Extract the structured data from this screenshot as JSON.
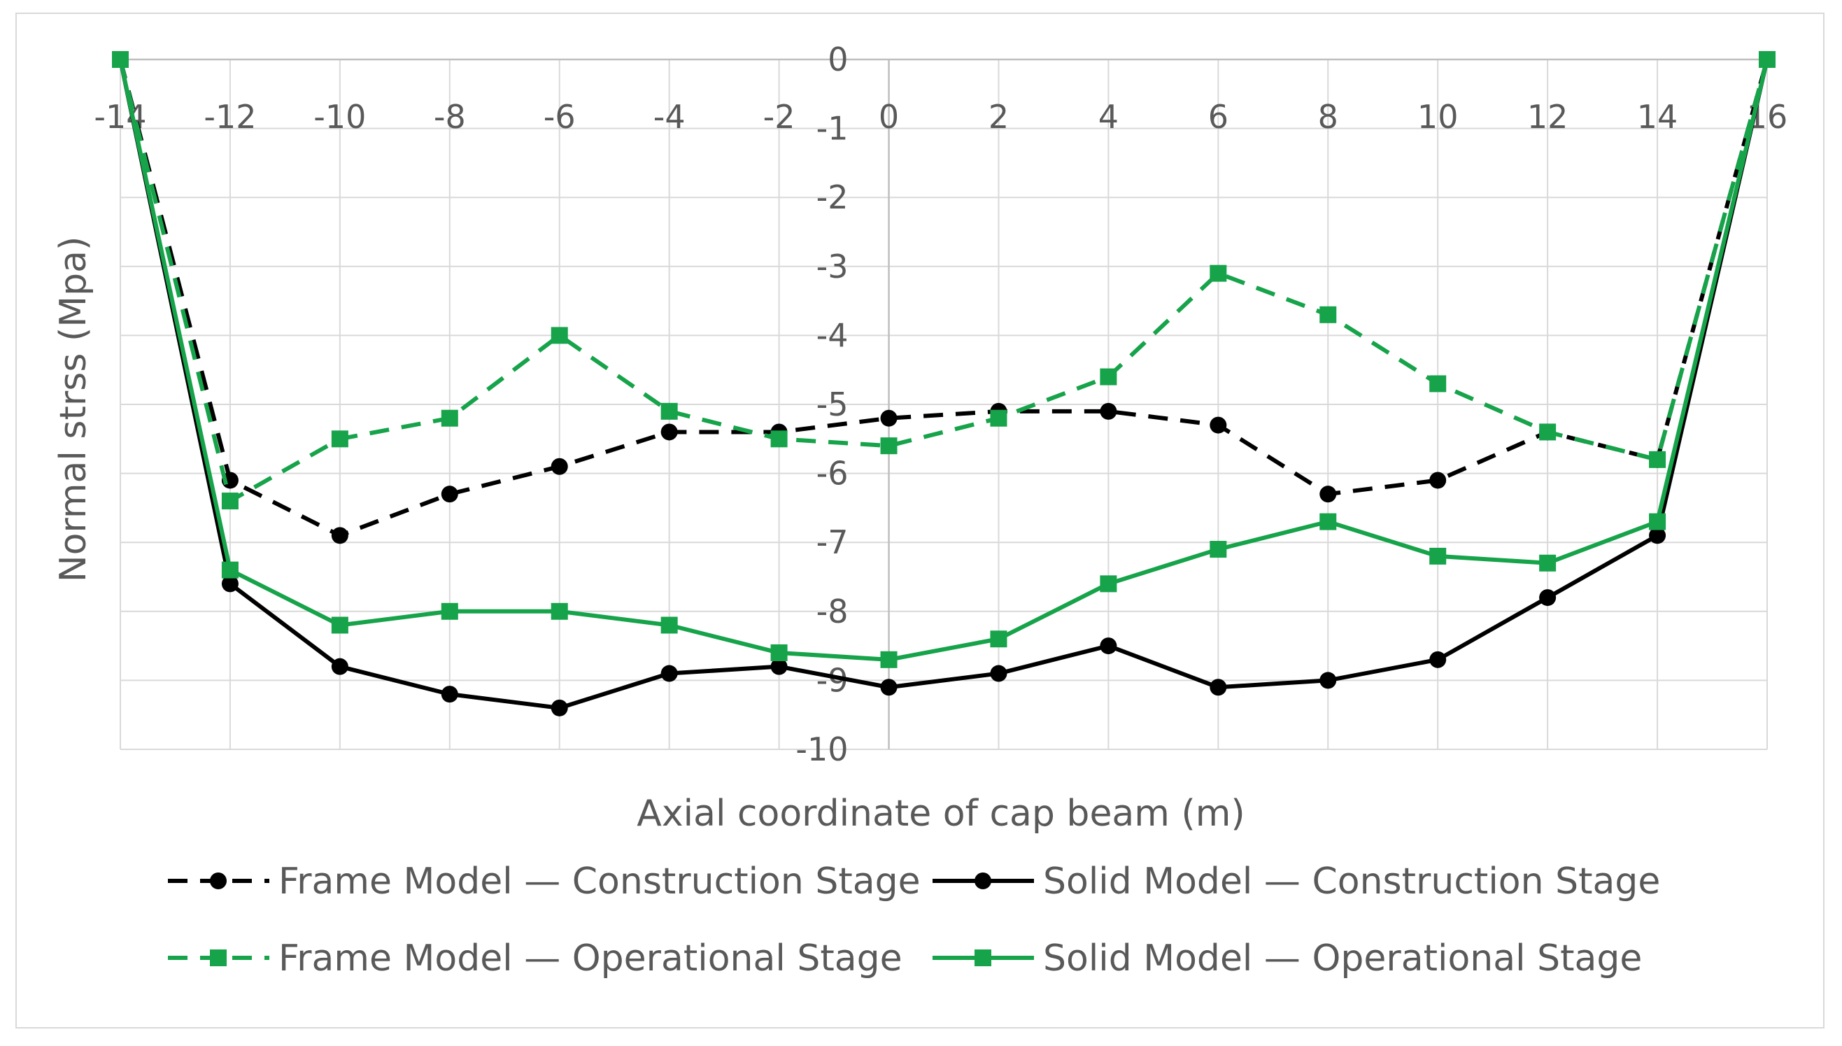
{
  "chart_data": {
    "type": "line",
    "title": "",
    "xlabel": "Axial coordinate of cap beam (m)",
    "ylabel": "Normal strss (Mpa)",
    "xlim": [
      -14,
      16
    ],
    "ylim": [
      -10,
      0
    ],
    "x_ticks": [
      "-14",
      "-12",
      "-10",
      "-8",
      "-6",
      "-4",
      "-2",
      "0",
      "2",
      "4",
      "6",
      "8",
      "10",
      "12",
      "14",
      "16"
    ],
    "y_ticks": [
      "0",
      "-1",
      "-2",
      "-3",
      "-4",
      "-5",
      "-6",
      "-7",
      "-8",
      "-9",
      "-10"
    ],
    "grid": true,
    "legend_position": "bottom",
    "x": [
      -14,
      -12,
      -10,
      -8,
      -6,
      -4,
      -2,
      0,
      2,
      4,
      6,
      8,
      10,
      12,
      14,
      16
    ],
    "series": [
      {
        "name": "Frame Model — Construction Stage",
        "color": "#000000",
        "line": "dashed",
        "marker": "circle",
        "values": [
          0,
          -6.1,
          -6.9,
          -6.3,
          -5.9,
          -5.4,
          -5.4,
          -5.2,
          -5.1,
          -5.1,
          -5.3,
          -6.3,
          -6.1,
          -5.4,
          -5.8,
          0
        ]
      },
      {
        "name": "Solid Model — Construction Stage",
        "color": "#000000",
        "line": "solid",
        "marker": "circle",
        "values": [
          0,
          -7.6,
          -8.8,
          -9.2,
          -9.4,
          -8.9,
          -8.8,
          -9.1,
          -8.9,
          -8.5,
          -9.1,
          -9.0,
          -8.7,
          -7.8,
          -6.9,
          0
        ]
      },
      {
        "name": "Frame Model — Operational Stage",
        "color": "#16a34a",
        "line": "dashed",
        "marker": "square",
        "values": [
          0,
          -6.4,
          -5.5,
          -5.2,
          -4.0,
          -5.1,
          -5.5,
          -5.6,
          -5.2,
          -4.6,
          -3.1,
          -3.7,
          -4.7,
          -5.4,
          -5.8,
          0
        ]
      },
      {
        "name": "Solid Model — Operational Stage",
        "color": "#16a34a",
        "line": "solid",
        "marker": "square",
        "values": [
          0,
          -7.4,
          -8.2,
          -8.0,
          -8.0,
          -8.2,
          -8.6,
          -8.7,
          -8.4,
          -7.6,
          -7.1,
          -6.7,
          -7.2,
          -7.3,
          -6.7,
          0
        ]
      }
    ]
  }
}
